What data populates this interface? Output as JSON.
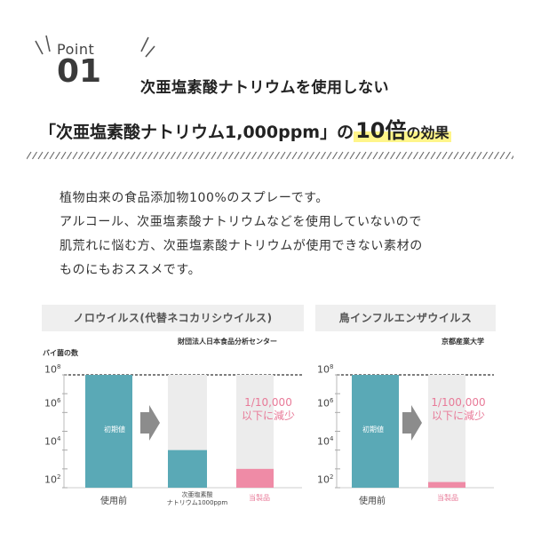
{
  "point": {
    "word": "Point",
    "number": "01"
  },
  "headline": "次亜塩素酸ナトリウムを使用しない",
  "subhead": {
    "prefix": "「次亜塩素酸ナトリウム1,000ppm」の",
    "highlight": "10倍",
    "suffix": "の効果"
  },
  "body": [
    "植物由来の食品添加物100%のスプレーです。",
    "アルコール、次亜塩素酸ナトリウムなどを使用していないので",
    "肌荒れに悩む方、次亜塩素酸ナトリウムが使用できない素材の",
    "ものにもおススメです。"
  ],
  "colors": {
    "teal": "#5aa9b6",
    "pink": "#ef8ba6",
    "light": "#ececec",
    "arrow": "#8c8c8c",
    "panel": "#efefef"
  },
  "chart_data": [
    {
      "type": "bar",
      "title": "ノロウイルス(代替ネコカリシウイルス)",
      "source": "財団法人日本食品分析センター",
      "ylabel": "バイ菌の数",
      "yscale": "log",
      "ylim": [
        100,
        100000000
      ],
      "yticks": [
        "10",
        "10",
        "10",
        "10"
      ],
      "ytick_exponents": [
        "8",
        "6",
        "4",
        "2"
      ],
      "categories": [
        "使用前",
        "次亜塩素酸ナトリウム1000ppm",
        "当製品"
      ],
      "category_lines": [
        [
          "使用前"
        ],
        [
          "次亜塩素酸",
          "ナトリウム1000ppm"
        ],
        [
          "当製品"
        ]
      ],
      "values": [
        100000000,
        10000,
        1000
      ],
      "bar_labels": [
        "初期値",
        "",
        ""
      ],
      "annotation": [
        "1/10,000",
        "以下に減少"
      ]
    },
    {
      "type": "bar",
      "title": "鳥インフルエンザウイルス",
      "source": "京都産業大学",
      "yscale": "log",
      "ylim": [
        100,
        100000000
      ],
      "yticks": [
        "10",
        "10",
        "10",
        "10"
      ],
      "ytick_exponents": [
        "8",
        "6",
        "4",
        "2"
      ],
      "categories": [
        "使用前",
        "当製品"
      ],
      "values": [
        100000000,
        200
      ],
      "bar_labels": [
        "初期値",
        ""
      ],
      "annotation": [
        "1/100,000",
        "以下に減少"
      ]
    }
  ]
}
